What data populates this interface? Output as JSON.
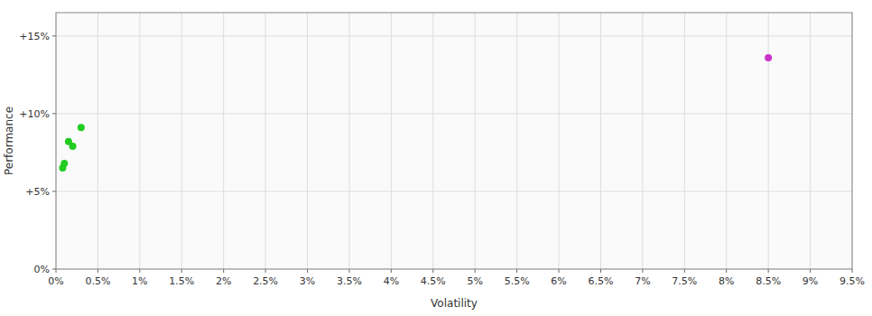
{
  "chart_data": {
    "type": "scatter",
    "xlabel": "Volatility",
    "ylabel": "Performance",
    "xlim": [
      0,
      0.095
    ],
    "ylim": [
      0,
      0.165
    ],
    "xticks": [
      {
        "value": 0.0,
        "label": "0%"
      },
      {
        "value": 0.005,
        "label": "0.5%"
      },
      {
        "value": 0.01,
        "label": "1%"
      },
      {
        "value": 0.015,
        "label": "1.5%"
      },
      {
        "value": 0.02,
        "label": "2%"
      },
      {
        "value": 0.025,
        "label": "2.5%"
      },
      {
        "value": 0.03,
        "label": "3%"
      },
      {
        "value": 0.035,
        "label": "3.5%"
      },
      {
        "value": 0.04,
        "label": "4%"
      },
      {
        "value": 0.045,
        "label": "4.5%"
      },
      {
        "value": 0.05,
        "label": "5%"
      },
      {
        "value": 0.055,
        "label": "5.5%"
      },
      {
        "value": 0.06,
        "label": "6%"
      },
      {
        "value": 0.065,
        "label": "6.5%"
      },
      {
        "value": 0.07,
        "label": "7%"
      },
      {
        "value": 0.075,
        "label": "7.5%"
      },
      {
        "value": 0.08,
        "label": "8%"
      },
      {
        "value": 0.085,
        "label": "8.5%"
      },
      {
        "value": 0.09,
        "label": "9%"
      },
      {
        "value": 0.095,
        "label": "9.5%"
      }
    ],
    "yticks": [
      {
        "value": 0.0,
        "label": "0%"
      },
      {
        "value": 0.05,
        "label": "+5%"
      },
      {
        "value": 0.1,
        "label": "+10%"
      },
      {
        "value": 0.15,
        "label": "+15%"
      }
    ],
    "grid": true,
    "series": [
      {
        "color": "#22cc22",
        "x": [
          0.003,
          0.0015,
          0.002,
          0.001,
          0.0008
        ],
        "values": [
          0.091,
          0.082,
          0.079,
          0.068,
          0.065
        ]
      },
      {
        "color": "#cc33cc",
        "x": [
          0.085
        ],
        "values": [
          0.136
        ]
      }
    ]
  }
}
